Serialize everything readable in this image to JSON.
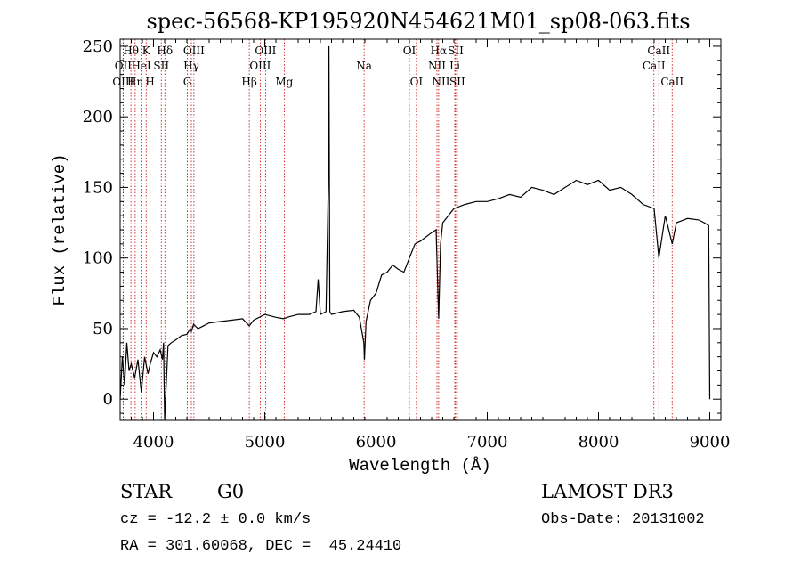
{
  "chart_data": {
    "type": "line",
    "title": "spec-56568-KP195920N454621M01_sp08-063.fits",
    "xlabel": "Wavelength (Å)",
    "ylabel": "Flux (relative)",
    "xlim": [
      3700,
      9100
    ],
    "ylim": [
      -15,
      255
    ],
    "xticks": [
      4000,
      5000,
      6000,
      7000,
      8000,
      9000
    ],
    "yticks": [
      0,
      50,
      100,
      150,
      200,
      250
    ],
    "series": [
      {
        "name": "flux",
        "x": [
          3700,
          3720,
          3740,
          3760,
          3780,
          3800,
          3830,
          3860,
          3890,
          3920,
          3950,
          3970,
          4000,
          4030,
          4060,
          4080,
          4090,
          4100,
          4130,
          4160,
          4200,
          4250,
          4300,
          4330,
          4340,
          4360,
          4400,
          4450,
          4500,
          4600,
          4700,
          4800,
          4861,
          4900,
          5000,
          5100,
          5170,
          5200,
          5300,
          5400,
          5460,
          5480,
          5500,
          5550,
          5570,
          5577,
          5585,
          5600,
          5700,
          5800,
          5850,
          5890,
          5896,
          5910,
          5950,
          6000,
          6050,
          6100,
          6150,
          6200,
          6250,
          6300,
          6350,
          6400,
          6450,
          6500,
          6540,
          6563,
          6580,
          6600,
          6650,
          6700,
          6800,
          6900,
          7000,
          7100,
          7200,
          7300,
          7400,
          7500,
          7600,
          7700,
          7800,
          7900,
          8000,
          8100,
          8200,
          8300,
          8400,
          8500,
          8542,
          8600,
          8662,
          8700,
          8800,
          8900,
          8950,
          8990,
          9000
        ],
        "values": [
          0,
          30,
          10,
          40,
          20,
          25,
          15,
          28,
          5,
          30,
          18,
          25,
          33,
          30,
          35,
          28,
          40,
          -15,
          38,
          40,
          42,
          45,
          46,
          50,
          48,
          53,
          50,
          52,
          54,
          55,
          56,
          57,
          52,
          56,
          60,
          58,
          57,
          58,
          60,
          60,
          62,
          85,
          60,
          62,
          150,
          250,
          62,
          60,
          62,
          63,
          58,
          40,
          28,
          55,
          70,
          75,
          88,
          90,
          95,
          92,
          90,
          100,
          110,
          112,
          115,
          118,
          120,
          57,
          110,
          125,
          130,
          135,
          138,
          140,
          140,
          142,
          145,
          143,
          150,
          148,
          145,
          150,
          155,
          152,
          155,
          148,
          150,
          145,
          138,
          135,
          100,
          130,
          110,
          125,
          128,
          127,
          125,
          123,
          0
        ]
      }
    ],
    "line_markers": [
      {
        "label": "Hθ",
        "wave": 3797,
        "row": 1
      },
      {
        "label": "OII",
        "wave": 3727,
        "row": 2
      },
      {
        "label": "OIII",
        "wave": 3727,
        "row": 3
      },
      {
        "label": "K",
        "wave": 3934,
        "row": 1
      },
      {
        "label": "HeI",
        "wave": 3889,
        "row": 2
      },
      {
        "label": "Hη",
        "wave": 3835,
        "row": 3
      },
      {
        "label": "Hδ",
        "wave": 4102,
        "row": 1
      },
      {
        "label": "SII",
        "wave": 4070,
        "row": 2
      },
      {
        "label": "H",
        "wave": 3969,
        "row": 3
      },
      {
        "label": "OIII",
        "wave": 4363,
        "row": 1
      },
      {
        "label": "Hγ",
        "wave": 4340,
        "row": 2
      },
      {
        "label": "G",
        "wave": 4304,
        "row": 3
      },
      {
        "label": "Hβ",
        "wave": 4861,
        "row": 3
      },
      {
        "label": "OIII",
        "wave": 5007,
        "row": 1
      },
      {
        "label": "OIII",
        "wave": 4959,
        "row": 2
      },
      {
        "label": "Mg",
        "wave": 5175,
        "row": 3
      },
      {
        "label": "Na",
        "wave": 5893,
        "row": 2
      },
      {
        "label": "OI",
        "wave": 6300,
        "row": 1
      },
      {
        "label": "OI",
        "wave": 6363,
        "row": 3
      },
      {
        "label": "Hα",
        "wave": 6563,
        "row": 1
      },
      {
        "label": "SII",
        "wave": 6716,
        "row": 1
      },
      {
        "label": "NII",
        "wave": 6548,
        "row": 2
      },
      {
        "label": "Li",
        "wave": 6708,
        "row": 2
      },
      {
        "label": "NII",
        "wave": 6584,
        "row": 3
      },
      {
        "label": "SII",
        "wave": 6731,
        "row": 3
      },
      {
        "label": "CaII",
        "wave": 8542,
        "row": 1
      },
      {
        "label": "CaII",
        "wave": 8498,
        "row": 2
      },
      {
        "label": "CaII",
        "wave": 8662,
        "row": 3
      }
    ],
    "marker_color": "#cc0000"
  },
  "footer": {
    "object_class": "STAR",
    "subclass": "G0",
    "redshift": "cz = -12.2 ± 0.0 km/s",
    "coordinates": "RA = 301.60068, DEC =  45.24410",
    "survey": "LAMOST DR3",
    "obs_date": "Obs-Date: 20131002"
  }
}
